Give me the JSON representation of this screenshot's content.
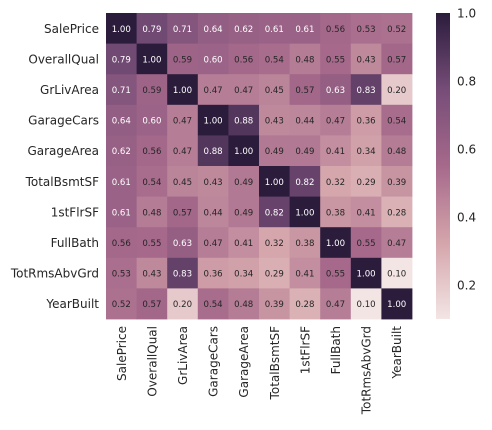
{
  "chart_data": {
    "type": "heatmap",
    "title": "",
    "xlabel": "",
    "ylabel": "",
    "rows": [
      "SalePrice",
      "OverallQual",
      "GrLivArea",
      "GarageCars",
      "GarageArea",
      "TotalBsmtSF",
      "1stFlrSF",
      "FullBath",
      "TotRmsAbvGrd",
      "YearBuilt"
    ],
    "columns": [
      "SalePrice",
      "OverallQual",
      "GrLivArea",
      "GarageCars",
      "GarageArea",
      "TotalBsmtSF",
      "1stFlrSF",
      "FullBath",
      "TotRmsAbvGrd",
      "YearBuilt"
    ],
    "values": [
      [
        1.0,
        0.79,
        0.71,
        0.64,
        0.62,
        0.61,
        0.61,
        0.56,
        0.53,
        0.52
      ],
      [
        0.79,
        1.0,
        0.59,
        0.6,
        0.56,
        0.54,
        0.48,
        0.55,
        0.43,
        0.57
      ],
      [
        0.71,
        0.59,
        1.0,
        0.47,
        0.47,
        0.45,
        0.57,
        0.63,
        0.83,
        0.2
      ],
      [
        0.64,
        0.6,
        0.47,
        1.0,
        0.88,
        0.43,
        0.44,
        0.47,
        0.36,
        0.54
      ],
      [
        0.62,
        0.56,
        0.47,
        0.88,
        1.0,
        0.49,
        0.49,
        0.41,
        0.34,
        0.48
      ],
      [
        0.61,
        0.54,
        0.45,
        0.43,
        0.49,
        1.0,
        0.82,
        0.32,
        0.29,
        0.39
      ],
      [
        0.61,
        0.48,
        0.57,
        0.44,
        0.49,
        0.82,
        1.0,
        0.38,
        0.41,
        0.28
      ],
      [
        0.56,
        0.55,
        0.63,
        0.47,
        0.41,
        0.32,
        0.38,
        1.0,
        0.55,
        0.47
      ],
      [
        0.53,
        0.43,
        0.83,
        0.36,
        0.34,
        0.29,
        0.41,
        0.55,
        1.0,
        0.1
      ],
      [
        0.52,
        0.57,
        0.2,
        0.54,
        0.48,
        0.39,
        0.28,
        0.47,
        0.1,
        1.0
      ]
    ],
    "annotation_format": "0.00",
    "colorbar": {
      "range": [
        0.1,
        1.0
      ],
      "ticks": [
        0.2,
        0.4,
        0.6,
        0.8,
        1.0
      ],
      "tick_labels": [
        "0.2",
        "0.4",
        "0.6",
        "0.8",
        "1.0"
      ]
    },
    "colors": {
      "low": "#f3e5e4",
      "mid_low": "#d4a5ab",
      "mid": "#a6698b",
      "mid_high": "#764d78",
      "high": "#2b1c3c",
      "annotation_light": "#ffffff",
      "annotation_dark": "#262626",
      "label_text": "#262626"
    },
    "grid": false
  }
}
